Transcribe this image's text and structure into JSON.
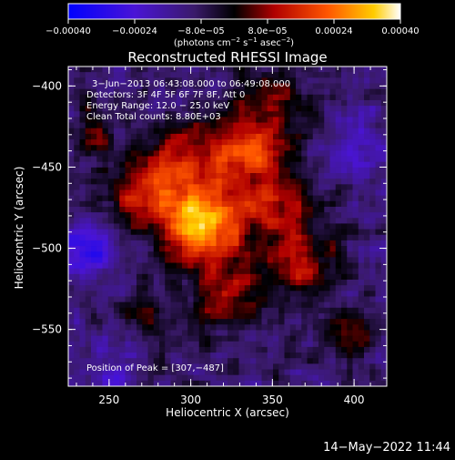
{
  "chart_data": {
    "type": "heatmap",
    "title": "Reconstructed RHESSI Image",
    "xlabel": "Heliocentric X (arcsec)",
    "ylabel": "Heliocentric Y (arcsec)",
    "xlim": [
      225,
      420
    ],
    "ylim": [
      -585,
      -388
    ],
    "x_ticks": [
      250,
      300,
      350,
      400
    ],
    "x_tick_labels": [
      "250",
      "300",
      "350",
      "400"
    ],
    "y_ticks": [
      -400,
      -450,
      -500,
      -550
    ],
    "y_tick_labels": [
      "−400",
      "−450",
      "−500",
      "−550"
    ],
    "colorbar": {
      "range": [
        -0.0004,
        0.0004
      ],
      "ticks": [
        -0.0004,
        -0.00024,
        -8e-05,
        8e-05,
        0.00024,
        0.0004
      ],
      "tick_labels": [
        "−0.00040",
        "−0.00024",
        "−8.0e−05",
        "8.0e−05",
        "0.00024",
        "0.00040"
      ],
      "unit_prefix": "(photons cm",
      "unit_exp1": "−2",
      "unit_mid1": " s",
      "unit_exp2": "−1",
      "unit_mid2": " asec",
      "unit_exp3": "−2",
      "unit_suffix": ")",
      "colormap": "blue-purple-black-red-orange-yellow-white"
    },
    "annotations": {
      "time": "3−Jun−2013 06:43:08.000 to 06:49:08.000",
      "detectors": "Detectors: 3F 4F 5F 6F 7F 8F, Att 0",
      "energy": "Energy Range: 12.0 − 25.0 keV",
      "clean": "Clean     Total counts: 8.80E+03",
      "peak": "Position of Peak = [307,−487]"
    },
    "peak": {
      "x": 307,
      "y": -487
    },
    "sources": [
      {
        "x": 307,
        "y": -487,
        "amp": 0.0004,
        "sigma": 16
      },
      {
        "x": 335,
        "y": -440,
        "amp": 0.00028,
        "sigma": 17
      },
      {
        "x": 290,
        "y": -455,
        "amp": 0.00024,
        "sigma": 18
      },
      {
        "x": 352,
        "y": -478,
        "amp": 0.00022,
        "sigma": 16
      },
      {
        "x": 265,
        "y": -472,
        "amp": 0.00014,
        "sigma": 14
      },
      {
        "x": 325,
        "y": -525,
        "amp": 0.00016,
        "sigma": 16
      },
      {
        "x": 372,
        "y": -512,
        "amp": 0.0002,
        "sigma": 13
      },
      {
        "x": 395,
        "y": -552,
        "amp": 0.00015,
        "sigma": 11
      },
      {
        "x": 352,
        "y": -405,
        "amp": 0.00012,
        "sigma": 14
      },
      {
        "x": 240,
        "y": -430,
        "amp": 0.0001,
        "sigma": 12
      },
      {
        "x": 272,
        "y": -545,
        "amp": 8e-05,
        "sigma": 15
      },
      {
        "x": 405,
        "y": -440,
        "amp": -0.00012,
        "sigma": 14
      },
      {
        "x": 238,
        "y": -505,
        "amp": -0.0002,
        "sigma": 13
      },
      {
        "x": 250,
        "y": -570,
        "amp": -0.0001,
        "sigma": 14
      }
    ]
  },
  "footer": {
    "date": "14−May−2022 11:44"
  }
}
